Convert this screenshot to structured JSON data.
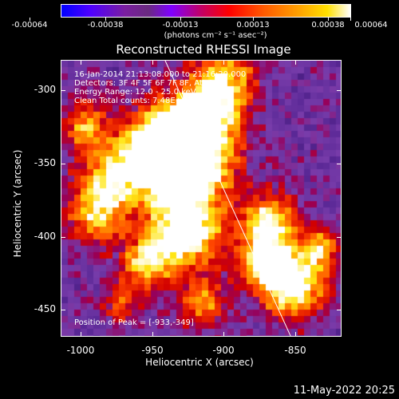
{
  "colorbar": {
    "labels": [
      "-0.00064",
      "-0.00038",
      "-0.00013",
      "0.00013",
      "0.00038",
      "0.00064"
    ],
    "units": "(photons cm⁻² s⁻¹ asec⁻²)"
  },
  "title": "Reconstructed RHESSI Image",
  "annotations": {
    "time": "16-Jan-2014 21:13:08.000 to 21:16:20.000",
    "detectors": "Detectors: 3F 4F 5F 6F 7F 8F, Att 0",
    "energy": "Energy Range: 12.0 - 25.0 keV",
    "clean": "Clean     Total counts: 7.48E+03",
    "peak": "Position of Peak = [-933,-349]"
  },
  "axes": {
    "xlabel": "Heliocentric X (arcsec)",
    "ylabel": "Heliocentric Y (arcsec)",
    "xticks": [
      "-1000",
      "-950",
      "-900",
      "-850"
    ],
    "yticks": [
      "-300",
      "-350",
      "-400",
      "-450"
    ]
  },
  "footer": {
    "date": "11-May-2022 20:25"
  }
}
